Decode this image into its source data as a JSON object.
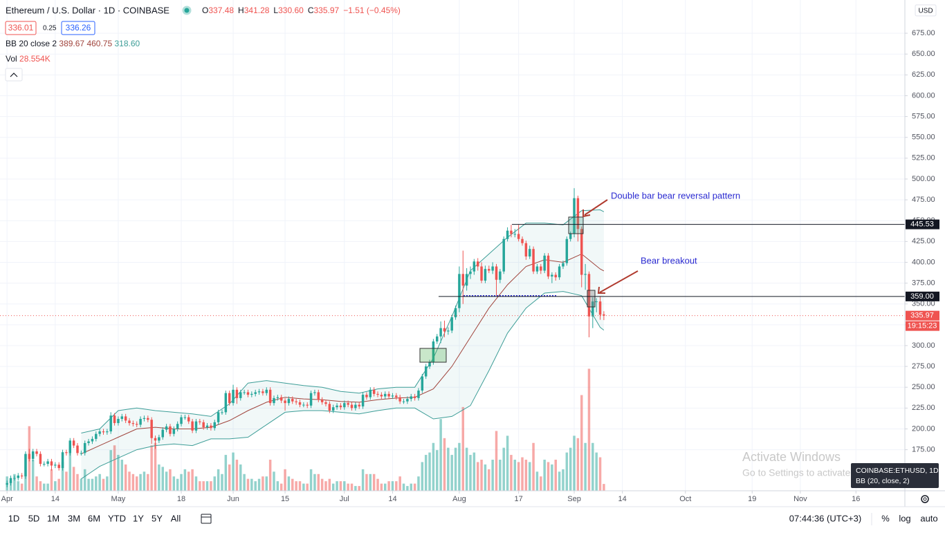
{
  "header": {
    "title": "Ethereum / U.S. Dollar · 1D · COINBASE",
    "ohlc_keys": [
      "O",
      "H",
      "L",
      "C"
    ],
    "ohlc_values": [
      "337.48",
      "341.28",
      "330.60",
      "335.97"
    ],
    "change": "−1.51 (−0.45%)",
    "bid": "336.01",
    "spread": "0.25",
    "ask": "336.26",
    "bb_label": "BB 20 close 2",
    "bb_values": [
      "389.67",
      "460.75",
      "318.60"
    ],
    "vol_label": "Vol",
    "vol_value": "28.554K",
    "currency": "USD"
  },
  "chart_data": {
    "type": "candlestick",
    "up_color": "#26a69a",
    "down_color": "#ef5350",
    "xlim": [
      -1.9,
      242.2
    ],
    "ylim": [
      125.7,
      714.9
    ],
    "vlim": [
      0,
      520
    ],
    "grid": true,
    "xticks": [
      {
        "value": 0,
        "label": "Apr"
      },
      {
        "value": 13,
        "label": "14"
      },
      {
        "value": 30,
        "label": "May"
      },
      {
        "value": 47,
        "label": "18"
      },
      {
        "value": 61,
        "label": "Jun"
      },
      {
        "value": 75,
        "label": "15"
      },
      {
        "value": 91,
        "label": "Jul"
      },
      {
        "value": 104,
        "label": "14"
      },
      {
        "value": 122,
        "label": "Aug"
      },
      {
        "value": 138,
        "label": "17"
      },
      {
        "value": 153,
        "label": "Sep"
      },
      {
        "value": 166,
        "label": "14"
      },
      {
        "value": 183,
        "label": "Oct"
      },
      {
        "value": 201,
        "label": "19"
      },
      {
        "value": 214,
        "label": "Nov"
      },
      {
        "value": 229,
        "label": "16"
      }
    ],
    "yticks": [
      {
        "value": 175,
        "label": "175.00"
      },
      {
        "value": 200,
        "label": "200.00"
      },
      {
        "value": 225,
        "label": "225.00"
      },
      {
        "value": 250,
        "label": "250.00"
      },
      {
        "value": 275,
        "label": "275.00"
      },
      {
        "value": 300,
        "label": "300.00"
      },
      {
        "value": 325,
        "label": "325.00"
      },
      {
        "value": 350,
        "label": "350.00"
      },
      {
        "value": 375,
        "label": "375.00"
      },
      {
        "value": 400,
        "label": "400.00"
      },
      {
        "value": 425,
        "label": "425.00"
      },
      {
        "value": 450,
        "label": "450.00"
      },
      {
        "value": 475,
        "label": "475.00"
      },
      {
        "value": 500,
        "label": "500.00"
      },
      {
        "value": 525,
        "label": "525.00"
      },
      {
        "value": 550,
        "label": "550.00"
      },
      {
        "value": 575,
        "label": "575.00"
      },
      {
        "value": 600,
        "label": "600.00"
      },
      {
        "value": 625,
        "label": "625.00"
      },
      {
        "value": 650,
        "label": "650.00"
      },
      {
        "value": 675,
        "label": "675.00"
      }
    ],
    "open": [
      133,
      135,
      141,
      141,
      144,
      143,
      170,
      164,
      173,
      170,
      158,
      158,
      161,
      156,
      157,
      153,
      172,
      171,
      186,
      180,
      171,
      171,
      183,
      185,
      188,
      194,
      197,
      196,
      197,
      216,
      207,
      212,
      215,
      210,
      207,
      206,
      205,
      212,
      213,
      211,
      189,
      186,
      190,
      199,
      203,
      194,
      200,
      206,
      214,
      214,
      209,
      198,
      209,
      208,
      202,
      204,
      201,
      208,
      220,
      220,
      243,
      231,
      247,
      237,
      244,
      244,
      241,
      242,
      244,
      245,
      243,
      247,
      231,
      237,
      238,
      234,
      231,
      236,
      233,
      232,
      229,
      229,
      228,
      243,
      244,
      235,
      232,
      230,
      222,
      226,
      228,
      226,
      231,
      229,
      225,
      229,
      227,
      241,
      238,
      247,
      242,
      241,
      239,
      242,
      239,
      240,
      238,
      233,
      233,
      236,
      239,
      237,
      246,
      263,
      275,
      280,
      305,
      311,
      321,
      317,
      318,
      334,
      345,
      386,
      372,
      386,
      389,
      401,
      395,
      378,
      392,
      390,
      395,
      379,
      389,
      428,
      438,
      434,
      434,
      428,
      423,
      407,
      416,
      389,
      395,
      390,
      408,
      383,
      385,
      382,
      395,
      399,
      428,
      434,
      477,
      440,
      385,
      386,
      335,
      353,
      353,
      337.48
    ],
    "high": [
      138,
      144,
      144,
      147,
      147,
      173,
      176,
      176,
      176,
      173,
      161,
      164,
      164,
      160,
      160,
      175,
      175,
      189,
      189,
      183,
      174,
      186,
      188,
      191,
      197,
      200,
      200,
      200,
      220,
      219,
      215,
      218,
      218,
      213,
      210,
      209,
      215,
      216,
      216,
      214,
      192,
      193,
      202,
      206,
      206,
      203,
      209,
      217,
      217,
      217,
      212,
      212,
      212,
      211,
      207,
      207,
      211,
      223,
      223,
      246,
      246,
      253,
      250,
      247,
      247,
      247,
      245,
      247,
      248,
      248,
      250,
      250,
      240,
      241,
      241,
      237,
      239,
      239,
      236,
      235,
      232,
      232,
      246,
      247,
      247,
      238,
      235,
      233,
      229,
      231,
      231,
      234,
      234,
      232,
      232,
      232,
      244,
      244,
      250,
      250,
      245,
      244,
      245,
      245,
      243,
      243,
      241,
      236,
      239,
      242,
      242,
      249,
      266,
      278,
      283,
      308,
      314,
      329,
      330,
      322,
      337,
      348,
      395,
      414,
      393,
      395,
      404,
      405,
      400,
      396,
      396,
      400,
      398,
      392,
      431,
      442,
      445,
      440,
      445,
      431,
      426,
      420,
      419,
      398,
      398,
      411,
      411,
      388,
      388,
      398,
      402,
      431,
      437,
      489,
      480,
      443,
      398,
      389,
      358,
      357,
      359,
      341.28
    ],
    "low": [
      130,
      132,
      138,
      138,
      140,
      140,
      161,
      161,
      167,
      155,
      155,
      155,
      150,
      153,
      150,
      150,
      168,
      168,
      177,
      168,
      168,
      168,
      180,
      182,
      185,
      191,
      193,
      193,
      194,
      204,
      204,
      209,
      207,
      204,
      203,
      202,
      202,
      209,
      208,
      182,
      176,
      183,
      187,
      196,
      191,
      191,
      197,
      203,
      211,
      206,
      195,
      195,
      205,
      199,
      199,
      198,
      198,
      205,
      217,
      217,
      228,
      228,
      230,
      234,
      241,
      238,
      238,
      239,
      241,
      240,
      240,
      228,
      228,
      234,
      231,
      222,
      228,
      230,
      229,
      226,
      226,
      225,
      225,
      240,
      232,
      229,
      227,
      219,
      219,
      223,
      223,
      223,
      226,
      222,
      222,
      224,
      224,
      235,
      235,
      239,
      238,
      236,
      236,
      236,
      236,
      235,
      230,
      230,
      230,
      233,
      234,
      234,
      243,
      260,
      272,
      277,
      302,
      303,
      310,
      313,
      315,
      331,
      340,
      350,
      366,
      380,
      385,
      390,
      375,
      375,
      387,
      386,
      360,
      375,
      386,
      425,
      430,
      430,
      425,
      420,
      403,
      404,
      386,
      386,
      386,
      387,
      380,
      375,
      378,
      379,
      392,
      396,
      425,
      430,
      425,
      370,
      367,
      310,
      321,
      340,
      331,
      330.6
    ],
    "close": [
      135,
      141,
      141,
      144,
      143,
      170,
      164,
      173,
      170,
      158,
      158,
      161,
      156,
      157,
      153,
      172,
      171,
      186,
      180,
      171,
      171,
      183,
      185,
      188,
      194,
      197,
      196,
      197,
      216,
      207,
      212,
      215,
      210,
      207,
      206,
      205,
      212,
      213,
      211,
      189,
      186,
      190,
      199,
      203,
      194,
      200,
      206,
      214,
      214,
      209,
      198,
      209,
      208,
      202,
      204,
      201,
      208,
      220,
      220,
      243,
      231,
      247,
      237,
      244,
      244,
      241,
      242,
      244,
      245,
      243,
      247,
      231,
      237,
      238,
      234,
      231,
      236,
      233,
      232,
      229,
      229,
      228,
      243,
      244,
      235,
      232,
      230,
      222,
      226,
      228,
      226,
      231,
      229,
      225,
      229,
      227,
      241,
      238,
      247,
      242,
      241,
      239,
      242,
      239,
      240,
      238,
      233,
      233,
      236,
      239,
      237,
      246,
      263,
      275,
      280,
      305,
      311,
      321,
      317,
      318,
      334,
      345,
      386,
      372,
      386,
      389,
      401,
      395,
      378,
      392,
      390,
      395,
      379,
      389,
      428,
      438,
      434,
      434,
      428,
      423,
      407,
      416,
      389,
      395,
      390,
      408,
      383,
      385,
      382,
      395,
      399,
      428,
      434,
      477,
      440,
      385,
      386,
      335,
      353,
      353,
      337,
      335.97
    ],
    "volume": [
      60,
      40,
      70,
      40,
      30,
      150,
      270,
      130,
      60,
      40,
      30,
      30,
      90,
      40,
      50,
      120,
      80,
      160,
      100,
      70,
      50,
      90,
      50,
      50,
      60,
      70,
      50,
      60,
      170,
      190,
      150,
      130,
      110,
      80,
      70,
      60,
      70,
      80,
      70,
      190,
      200,
      110,
      100,
      80,
      90,
      60,
      50,
      70,
      90,
      80,
      90,
      60,
      40,
      40,
      40,
      40,
      60,
      90,
      70,
      150,
      110,
      160,
      130,
      110,
      70,
      50,
      50,
      40,
      50,
      60,
      60,
      130,
      80,
      40,
      30,
      90,
      60,
      50,
      40,
      40,
      30,
      30,
      90,
      70,
      70,
      50,
      40,
      50,
      30,
      40,
      40,
      40,
      30,
      30,
      20,
      20,
      90,
      70,
      70,
      70,
      50,
      30,
      30,
      40,
      40,
      40,
      60,
      30,
      20,
      30,
      30,
      60,
      120,
      150,
      160,
      200,
      170,
      300,
      220,
      180,
      150,
      180,
      200,
      350,
      180,
      150,
      160,
      120,
      130,
      110,
      90,
      130,
      250,
      130,
      180,
      230,
      150,
      130,
      120,
      140,
      130,
      120,
      200,
      80,
      60,
      130,
      120,
      110,
      130,
      80,
      90,
      160,
      180,
      230,
      220,
      400,
      200,
      510,
      200,
      160,
      140,
      28.554
    ],
    "bb": {
      "band_color": "#3c9d97",
      "basis_color": "#a0443c",
      "x": [
        20,
        25,
        30,
        35,
        40,
        45,
        50,
        55,
        60,
        65,
        70,
        75,
        80,
        85,
        90,
        95,
        100,
        105,
        110,
        115,
        120,
        125,
        130,
        135,
        140,
        145,
        150,
        155,
        160,
        161
      ],
      "upper": [
        195,
        200,
        222,
        225,
        222,
        220,
        218,
        215,
        230,
        255,
        258,
        255,
        252,
        250,
        245,
        243,
        248,
        250,
        250,
        285,
        335,
        390,
        410,
        430,
        447,
        447,
        445,
        462,
        463,
        460.75
      ],
      "middle": [
        170,
        180,
        190,
        200,
        202,
        200,
        200,
        202,
        210,
        222,
        232,
        238,
        236,
        235,
        233,
        232,
        235,
        237,
        238,
        248,
        275,
        310,
        345,
        373,
        395,
        403,
        400,
        410,
        392,
        389.67
      ],
      "lower": [
        140,
        155,
        165,
        175,
        180,
        182,
        180,
        188,
        188,
        190,
        205,
        220,
        222,
        222,
        220,
        218,
        222,
        225,
        225,
        212,
        215,
        228,
        270,
        315,
        345,
        363,
        365,
        360,
        322,
        318.6
      ]
    },
    "hlines": [
      445.53,
      {
        "value": 359,
        "label": "359.00"
      }
    ],
    "countdown": "19:15:23",
    "annotations": [
      "Double bar bear reversal pattern",
      "Bear breakout"
    ]
  },
  "toolbar": {
    "ranges": [
      "1D",
      "5D",
      "1M",
      "3M",
      "6M",
      "YTD",
      "1Y",
      "5Y",
      "All"
    ],
    "clock": "07:44:36 (UTC+3)",
    "percent": "%",
    "log": "log",
    "auto": "auto"
  },
  "tooltip": {
    "symbol": "COINBASE:ETHUSD, 1D",
    "study": "BB (20, close, 2)"
  },
  "watermark": {
    "title": "Activate Windows",
    "text": "Go to Settings to activate Windows."
  }
}
